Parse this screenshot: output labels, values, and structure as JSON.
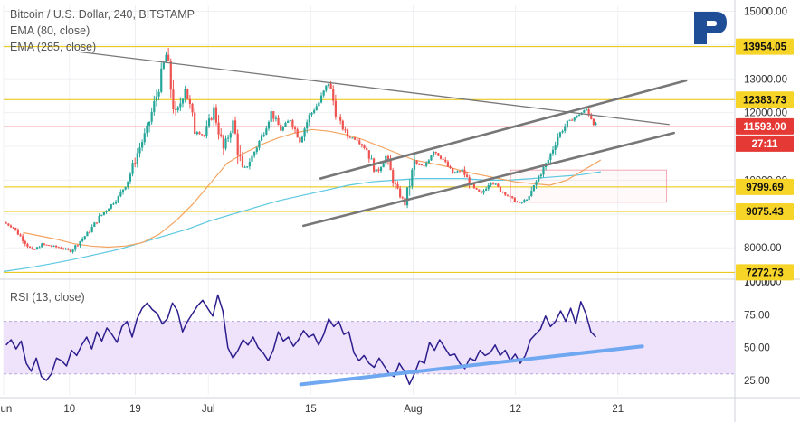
{
  "legend": {
    "title": "Bitcoin / U.S. Dollar, 240, BITSTAMP",
    "ema_fast": "EMA (80, close)",
    "ema_slow": "EMA (285, close)"
  },
  "rsi_label": "RSI (13, close)",
  "colors": {
    "up": "#26a69a",
    "down": "#ef5350",
    "ema_fast": "#f4a460",
    "ema_slow": "#5bc8e0",
    "rsi": "#2c1e8c",
    "rsi_band": "#efe2fb",
    "level": "#e8c300",
    "current": "#e53935",
    "trendline": "#777777",
    "rsi_trend": "#6fa8f0",
    "logo": "#1f4e97"
  },
  "chart_data": [
    {
      "type": "candlestick",
      "title": "Bitcoin / U.S. Dollar, 240, BITSTAMP",
      "ylim": [
        7150,
        15200
      ],
      "y_ticks": [
        "15000.00",
        "14000.00",
        "13000.00",
        "12000.00",
        "11000.00",
        "10000.00",
        "9000.00",
        "8000.00",
        "7000.00"
      ],
      "x_ticks": [
        "Jun",
        "10",
        "19",
        "Jul",
        "15",
        "Aug",
        "12",
        "21"
      ],
      "levels": [
        {
          "value": 13954.05,
          "label": "13954.05"
        },
        {
          "value": 12383.73,
          "label": "12383.73"
        },
        {
          "value": 9799.69,
          "label": "9799.69"
        },
        {
          "value": 9075.43,
          "label": "9075.43"
        },
        {
          "value": 7272.73,
          "label": "7272.73"
        }
      ],
      "current_price": {
        "value": 11593.0,
        "label": "11593.00",
        "countdown": "27:11"
      },
      "price_path": [
        8750,
        8600,
        8250,
        7900,
        8100,
        8050,
        8000,
        7900,
        8200,
        8500,
        8900,
        9200,
        9500,
        10000,
        10800,
        11500,
        12500,
        13700,
        11800,
        12800,
        11500,
        11300,
        12100,
        10900,
        11700,
        10200,
        10700,
        11300,
        12000,
        11500,
        11800,
        11200,
        11900,
        12300,
        12900,
        11800,
        11300,
        11200,
        10900,
        10200,
        10700,
        9800,
        9300,
        10500,
        10400,
        10900,
        10600,
        10200,
        10300,
        9800,
        9600,
        10000,
        9700,
        9500,
        9300,
        9500,
        10100,
        10600,
        11300,
        11700,
        11900,
        12100,
        11600
      ],
      "ema_fast_path": [
        8450,
        8350,
        8250,
        8120,
        8050,
        8020,
        8050,
        8150,
        8400,
        8800,
        9300,
        9900,
        10500,
        10800,
        11050,
        11250,
        11400,
        11500,
        11450,
        11350,
        11200,
        11000,
        10800,
        10600,
        10500,
        10400,
        10250,
        10150,
        10050,
        9950,
        9900,
        9850,
        10000,
        10300,
        10600
      ],
      "ema_slow_path": [
        7300,
        7400,
        7520,
        7650,
        7800,
        7950,
        8150,
        8350,
        8550,
        8800,
        9000,
        9200,
        9400,
        9550,
        9700,
        9850,
        9950,
        10000,
        10050,
        10050,
        10050,
        10000,
        10000,
        10050,
        10100,
        10150,
        10250
      ],
      "trendlines": [
        {
          "name": "upper-channel",
          "from": [
            13,
            10050
          ],
          "to": [
            28,
            12950
          ]
        },
        {
          "name": "lower-channel",
          "from": [
            12.3,
            8650
          ],
          "to": [
            27.5,
            11400
          ]
        },
        {
          "name": "descending-resistance",
          "from": [
            3.1,
            13800
          ],
          "to": [
            27.3,
            11650
          ]
        }
      ],
      "zone": {
        "from": [
          20.8,
          9350
        ],
        "to": [
          27.2,
          10300
        ]
      }
    },
    {
      "type": "line",
      "title": "RSI (13, close)",
      "ylim": [
        14,
        100
      ],
      "y_ticks": [
        "100.00",
        "75.00",
        "50.00",
        "25.00"
      ],
      "band": [
        30,
        70
      ],
      "values": [
        52,
        56,
        49,
        55,
        38,
        32,
        42,
        28,
        25,
        30,
        42,
        40,
        36,
        48,
        44,
        52,
        58,
        49,
        62,
        55,
        65,
        60,
        54,
        66,
        70,
        58,
        72,
        80,
        84,
        79,
        76,
        68,
        72,
        84,
        78,
        62,
        70,
        76,
        82,
        86,
        80,
        74,
        90,
        78,
        50,
        42,
        48,
        56,
        52,
        58,
        50,
        46,
        40,
        48,
        62,
        55,
        58,
        51,
        56,
        63,
        58,
        60,
        52,
        60,
        72,
        66,
        70,
        60,
        62,
        46,
        40,
        44,
        38,
        35,
        42,
        36,
        30,
        28,
        38,
        32,
        22,
        30,
        40,
        38,
        54,
        48,
        56,
        50,
        44,
        45,
        38,
        34,
        42,
        40,
        48,
        44,
        46,
        52,
        44,
        48,
        40,
        45,
        38,
        44,
        56,
        60,
        64,
        74,
        66,
        70,
        78,
        70,
        80,
        68,
        85,
        76,
        62,
        58
      ],
      "trendline": {
        "from": [
          12.2,
          22
        ],
        "to": [
          26.2,
          51
        ]
      }
    }
  ]
}
